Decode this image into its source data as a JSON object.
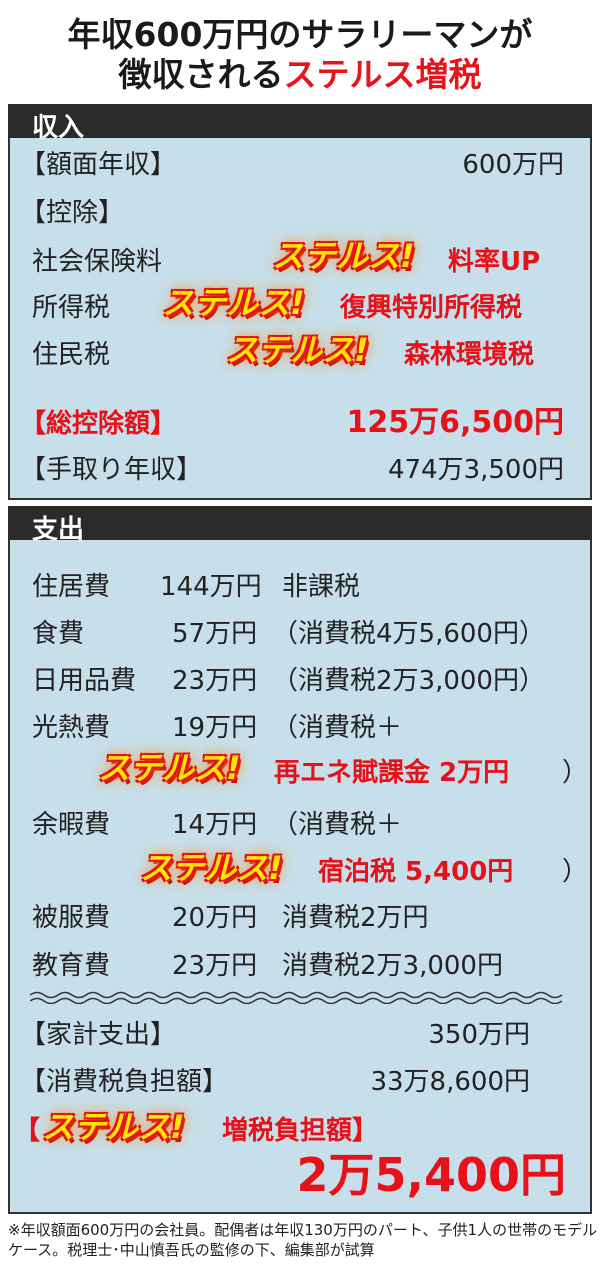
{
  "title": {
    "line1": "年収600万円のサラリーマンが",
    "line2_a": "徴収される",
    "line2_b": "ステルス増税"
  },
  "income": {
    "header": "収入",
    "gross_label": "【額面年収】",
    "gross_value": "600万円",
    "deduction_label": "【控除】",
    "items": [
      {
        "label": "社会保険料",
        "stealth": "ステルス!",
        "note": "料率UP"
      },
      {
        "label": "所得税",
        "stealth": "ステルス!",
        "note": "復興特別所得税"
      },
      {
        "label": "住民税",
        "stealth": "ステルス!",
        "note": "森林環境税"
      }
    ],
    "total_deduction_label": "【総控除額】",
    "total_deduction_value": "125万6,500円",
    "net_label": "【手取り年収】",
    "net_value": "474万3,500円"
  },
  "expense": {
    "header": "支出",
    "items": [
      {
        "label": "住居費",
        "amount": "144万円",
        "note": "非課税"
      },
      {
        "label": "食費",
        "amount": "57万円",
        "note": "（消費税4万5,600円）"
      },
      {
        "label": "日用品費",
        "amount": "23万円",
        "note": "（消費税2万3,000円）"
      },
      {
        "label": "光熱費",
        "amount": "19万円",
        "note": "（消費税＋",
        "stealth": "ステルス!",
        "stealth_note": "再エネ賦課金 2万円",
        "close": "）"
      },
      {
        "label": "余暇費",
        "amount": "14万円",
        "note": "（消費税＋",
        "stealth": "ステルス!",
        "stealth_note": "宿泊税 5,400円",
        "close": "）"
      },
      {
        "label": "被服費",
        "amount": "20万円",
        "note": "消費税2万円"
      },
      {
        "label": "教育費",
        "amount": "23万円",
        "note": "消費税2万3,000円"
      }
    ],
    "household_label": "【家計支出】",
    "household_value": "350万円",
    "consumption_tax_label": "【消費税負担額】",
    "consumption_tax_value": "33万8,600円",
    "increase_open": "【",
    "increase_stealth": "ステルス!",
    "increase_label": "増税負担額】",
    "increase_value": "2万5,400円"
  },
  "footnote": "※年収額面600万円の会社員。配偶者は年収130万円のパート、子供1人の世帯のモデルケース。税理士･中山慎吾氏の監修の下、編集部が試算",
  "colors": {
    "accent_red": "#e5121a",
    "stealth_yellow": "#ffe600",
    "panel": "#c7dfea",
    "bar": "#2b2b2b"
  }
}
